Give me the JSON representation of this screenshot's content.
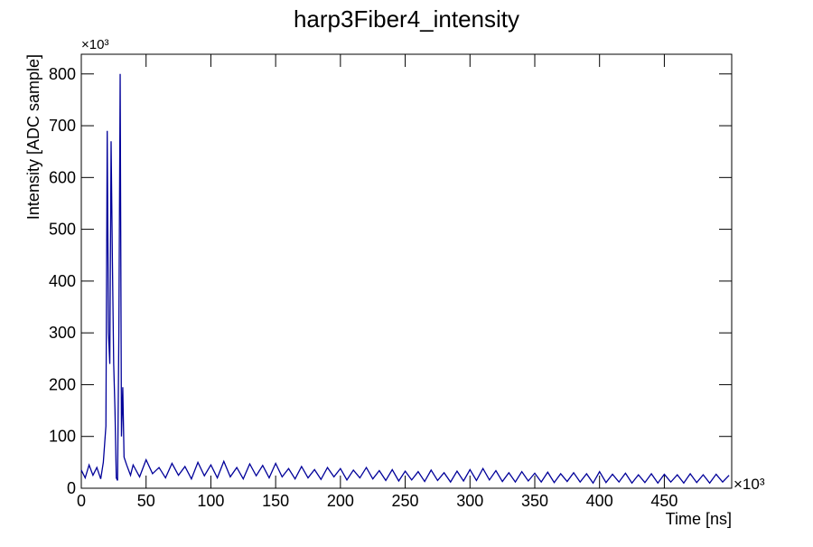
{
  "chart_data": {
    "type": "line",
    "title": "harp3Fiber4_intensity",
    "x_label": "Time [ns]",
    "y_label": "Intensity [ADC sample]",
    "x_exponent_label": "×10³",
    "y_exponent_label": "×10³",
    "xlim": [
      0,
      502
    ],
    "ylim": [
      0,
      838
    ],
    "xticks": [
      0,
      50,
      100,
      150,
      200,
      250,
      300,
      350,
      400,
      450
    ],
    "yticks": [
      0,
      100,
      200,
      300,
      400,
      500,
      600,
      700,
      800
    ],
    "grid": false,
    "series": [
      {
        "color": "#000099",
        "x": [
          0,
          3,
          6,
          9,
          12,
          15,
          17,
          19,
          20,
          21,
          22,
          23,
          24,
          25,
          26,
          27,
          28,
          29,
          30,
          31,
          32,
          33,
          35,
          38,
          40,
          45,
          50,
          55,
          60,
          65,
          70,
          75,
          80,
          85,
          90,
          95,
          100,
          105,
          110,
          115,
          120,
          125,
          130,
          135,
          140,
          145,
          150,
          155,
          160,
          165,
          170,
          175,
          180,
          185,
          190,
          195,
          200,
          205,
          210,
          215,
          220,
          225,
          230,
          235,
          240,
          245,
          250,
          255,
          260,
          265,
          270,
          275,
          280,
          285,
          290,
          295,
          300,
          305,
          310,
          315,
          320,
          325,
          330,
          335,
          340,
          345,
          350,
          355,
          360,
          365,
          370,
          375,
          380,
          385,
          390,
          395,
          400,
          405,
          410,
          415,
          420,
          425,
          430,
          435,
          440,
          445,
          450,
          455,
          460,
          465,
          470,
          475,
          480,
          485,
          490,
          495,
          500
        ],
        "values": [
          35,
          20,
          45,
          25,
          40,
          18,
          50,
          120,
          690,
          300,
          240,
          670,
          440,
          240,
          150,
          20,
          15,
          300,
          800,
          100,
          195,
          60,
          45,
          25,
          45,
          22,
          55,
          28,
          40,
          20,
          48,
          25,
          42,
          18,
          50,
          24,
          45,
          20,
          52,
          22,
          40,
          18,
          47,
          24,
          44,
          20,
          48,
          22,
          38,
          18,
          42,
          20,
          36,
          17,
          40,
          22,
          38,
          16,
          35,
          20,
          40,
          18,
          34,
          15,
          36,
          14,
          33,
          16,
          32,
          13,
          35,
          15,
          30,
          12,
          33,
          14,
          36,
          15,
          38,
          16,
          34,
          13,
          30,
          12,
          32,
          14,
          29,
          12,
          31,
          11,
          28,
          13,
          30,
          12,
          28,
          10,
          32,
          11,
          27,
          12,
          29,
          10,
          26,
          11,
          28,
          10,
          27,
          12,
          26,
          10,
          28,
          11,
          26,
          10,
          27,
          12,
          25
        ]
      }
    ]
  }
}
